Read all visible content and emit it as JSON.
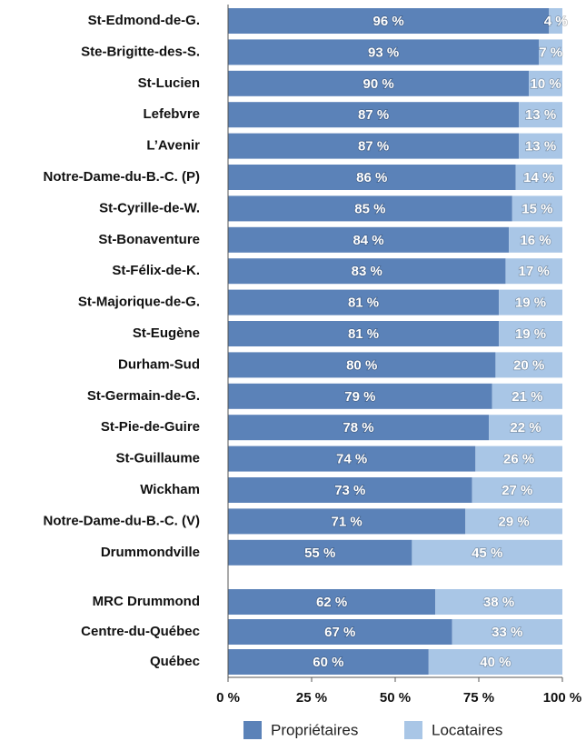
{
  "chart_data": {
    "type": "stacked_barh",
    "categories": [
      "St-Edmond-de-G.",
      "Ste-Brigitte-des-S.",
      "St-Lucien",
      "Lefebvre",
      "L’Avenir",
      "Notre-Dame-du-B.-C. (P)",
      "St-Cyrille-de-W.",
      "St-Bonaventure",
      "St-Félix-de-K.",
      "St-Majorique-de-G.",
      "St-Eugène",
      "Durham-Sud",
      "St-Germain-de-G.",
      "St-Pie-de-Guire",
      "St-Guillaume",
      "Wickham",
      "Notre-Dame-du-B.-C. (V)",
      "Drummondville",
      "MRC Drummond",
      "Centre-du-Québec",
      "Québec"
    ],
    "series": [
      {
        "name": "Propriétaires",
        "color": "#5b82b8",
        "values": [
          96,
          93,
          90,
          87,
          87,
          86,
          85,
          84,
          83,
          81,
          81,
          80,
          79,
          78,
          74,
          73,
          71,
          55,
          62,
          67,
          60
        ],
        "value_labels": [
          "96 %",
          "93 %",
          "90 %",
          "87 %",
          "87 %",
          "86 %",
          "85 %",
          "84 %",
          "83 %",
          "81 %",
          "81 %",
          "80 %",
          "79 %",
          "78 %",
          "74 %",
          "73 %",
          "71 %",
          "55 %",
          "62 %",
          "67 %",
          "60 %"
        ]
      },
      {
        "name": "Locataires",
        "color": "#a9c6e6",
        "values": [
          4,
          7,
          10,
          13,
          13,
          14,
          15,
          16,
          17,
          19,
          19,
          20,
          21,
          22,
          26,
          27,
          29,
          45,
          38,
          33,
          40
        ],
        "value_labels": [
          "4 %",
          "7 %",
          "10 %",
          "13 %",
          "13 %",
          "14 %",
          "15 %",
          "16 %",
          "17 %",
          "19 %",
          "19 %",
          "20 %",
          "21 %",
          "22 %",
          "26 %",
          "27 %",
          "29 %",
          "45 %",
          "38 %",
          "33 %",
          "40 %"
        ]
      }
    ],
    "xlim": [
      0,
      100
    ],
    "xticks": [
      {
        "value": 0,
        "label": "0 %"
      },
      {
        "value": 25,
        "label": "25 %"
      },
      {
        "value": 50,
        "label": "50 %"
      },
      {
        "value": 75,
        "label": "75 %"
      },
      {
        "value": 100,
        "label": "100 %"
      }
    ],
    "legend": "bottom"
  }
}
